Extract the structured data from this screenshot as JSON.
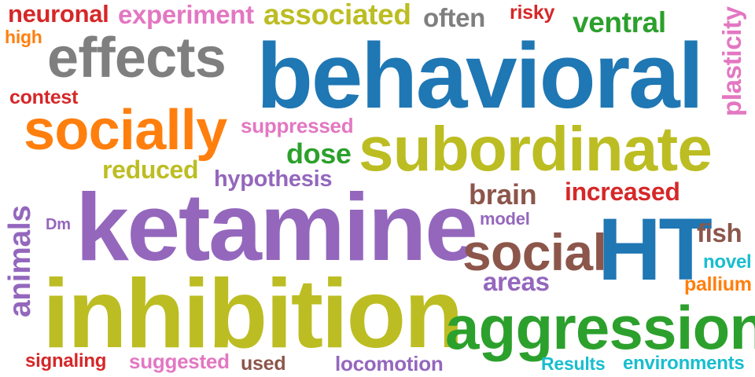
{
  "words": {
    "behavioral": "behavioral",
    "ketamine": "ketamine",
    "inhibition": "inhibition",
    "subordinate": "subordinate",
    "aggression": "aggression",
    "HT": "HT",
    "socially": "socially",
    "effects": "effects",
    "social": "social",
    "neuronal": "neuronal",
    "experiment": "experiment",
    "associated": "associated",
    "often": "often",
    "risky": "risky",
    "ventral": "ventral",
    "plasticity": "plasticity",
    "high": "high",
    "contest": "contest",
    "suppressed": "suppressed",
    "dose": "dose",
    "reduced": "reduced",
    "hypothesis": "hypothesis",
    "brain": "brain",
    "increased": "increased",
    "animals": "animals",
    "Dm": "Dm",
    "model": "model",
    "fish": "fish",
    "novel": "novel",
    "areas": "areas",
    "pallium": "pallium",
    "signaling": "signaling",
    "suggested": "suggested",
    "used": "used",
    "locomotion": "locomotion",
    "Results": "Results",
    "environments": "environments"
  },
  "colors": {
    "blue": "#1f77b4",
    "orange": "#ff7f0e",
    "green": "#2ca02c",
    "red": "#d62728",
    "purple": "#9467bd",
    "brown": "#8c564b",
    "pink": "#e377c2",
    "gray": "#7f7f7f",
    "olive": "#bcbd22",
    "cyan": "#17becf"
  }
}
